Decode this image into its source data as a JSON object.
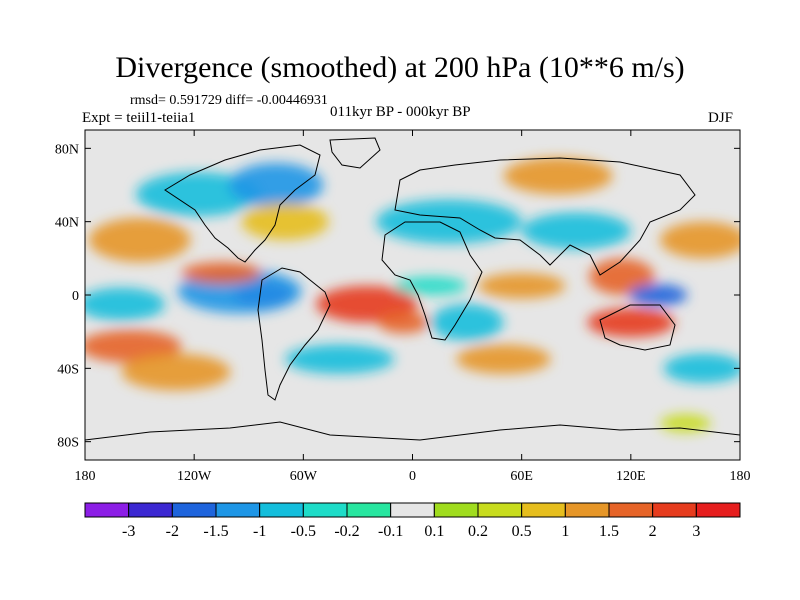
{
  "title": "Divergence (smoothed) at 200 hPa (10**6 m/s)",
  "stats": {
    "rmsd_label": "rmsd= 0.591729",
    "diff_label": "diff= -0.00446931"
  },
  "experiment": "Expt = teiil1-teiia1",
  "period": "011kyr BP - 000kyr BP",
  "season": "DJF",
  "map": {
    "projection": "cylindrical equidistant",
    "lon_range": [
      -180,
      180
    ],
    "lat_range": [
      -90,
      90
    ],
    "lon_ticks": [
      {
        "value": -180,
        "label": "180"
      },
      {
        "value": -120,
        "label": "120W"
      },
      {
        "value": -60,
        "label": "60W"
      },
      {
        "value": 0,
        "label": "0"
      },
      {
        "value": 60,
        "label": "60E"
      },
      {
        "value": 120,
        "label": "120E"
      },
      {
        "value": 180,
        "label": "180"
      }
    ],
    "lat_ticks": [
      {
        "value": 80,
        "label": "80N"
      },
      {
        "value": 40,
        "label": "40N"
      },
      {
        "value": 0,
        "label": "0"
      },
      {
        "value": -40,
        "label": "40S"
      },
      {
        "value": -80,
        "label": "80S"
      }
    ],
    "background_color": "#e6e6e6",
    "coastline_color": "#000000"
  },
  "colorbar": {
    "labels": [
      "-3",
      "-2",
      "-1.5",
      "-1",
      "-0.5",
      "-0.2",
      "-0.1",
      "0.1",
      "0.2",
      "0.5",
      "1",
      "1.5",
      "2",
      "3"
    ],
    "colors": [
      "#8c1ee6",
      "#3c28d2",
      "#1e64dc",
      "#1e96e6",
      "#14bedc",
      "#1edcc8",
      "#28e6a0",
      "#e6e6e6",
      "#a0dc1e",
      "#c8dc1e",
      "#e6be1e",
      "#e69628",
      "#e66428",
      "#e63c1e",
      "#e61e1e"
    ]
  },
  "regions": [
    {
      "lon": -82,
      "lat": 0,
      "rx": 16,
      "ry": 7,
      "cls": 1
    },
    {
      "lon": -95,
      "lat": 2,
      "rx": 34,
      "ry": 12,
      "cls": 3
    },
    {
      "lon": -160,
      "lat": -5,
      "rx": 24,
      "ry": 9,
      "cls": 4
    },
    {
      "lon": -155,
      "lat": -28,
      "rx": 28,
      "ry": 9,
      "cls": 12
    },
    {
      "lon": -130,
      "lat": -42,
      "rx": 30,
      "ry": 10,
      "cls": 11
    },
    {
      "lon": -150,
      "lat": 30,
      "rx": 28,
      "ry": 12,
      "cls": 11
    },
    {
      "lon": -105,
      "lat": 12,
      "rx": 22,
      "ry": 6,
      "cls": 12
    },
    {
      "lon": -118,
      "lat": 55,
      "rx": 34,
      "ry": 12,
      "cls": 4
    },
    {
      "lon": -75,
      "lat": 60,
      "rx": 26,
      "ry": 12,
      "cls": 3
    },
    {
      "lon": -70,
      "lat": 40,
      "rx": 24,
      "ry": 10,
      "cls": 10
    },
    {
      "lon": -25,
      "lat": -5,
      "rx": 28,
      "ry": 10,
      "cls": 13
    },
    {
      "lon": -5,
      "lat": -15,
      "rx": 14,
      "ry": 6,
      "cls": 12
    },
    {
      "lon": -40,
      "lat": -35,
      "rx": 30,
      "ry": 8,
      "cls": 4
    },
    {
      "lon": 30,
      "lat": -15,
      "rx": 20,
      "ry": 10,
      "cls": 4
    },
    {
      "lon": 50,
      "lat": -35,
      "rx": 26,
      "ry": 8,
      "cls": 11
    },
    {
      "lon": 10,
      "lat": 5,
      "rx": 20,
      "ry": 5,
      "cls": 5
    },
    {
      "lon": 60,
      "lat": 5,
      "rx": 24,
      "ry": 7,
      "cls": 11
    },
    {
      "lon": 20,
      "lat": 40,
      "rx": 40,
      "ry": 12,
      "cls": 4
    },
    {
      "lon": 90,
      "lat": 35,
      "rx": 30,
      "ry": 10,
      "cls": 4
    },
    {
      "lon": 80,
      "lat": 65,
      "rx": 30,
      "ry": 10,
      "cls": 11
    },
    {
      "lon": 115,
      "lat": 10,
      "rx": 18,
      "ry": 10,
      "cls": 12
    },
    {
      "lon": 135,
      "lat": 0,
      "rx": 16,
      "ry": 6,
      "cls": 2
    },
    {
      "lon": 120,
      "lat": -15,
      "rx": 24,
      "ry": 8,
      "cls": 13
    },
    {
      "lon": 160,
      "lat": 30,
      "rx": 24,
      "ry": 10,
      "cls": 11
    },
    {
      "lon": 160,
      "lat": -40,
      "rx": 22,
      "ry": 8,
      "cls": 4
    },
    {
      "lon": 150,
      "lat": -70,
      "rx": 14,
      "ry": 5,
      "cls": 9
    }
  ]
}
